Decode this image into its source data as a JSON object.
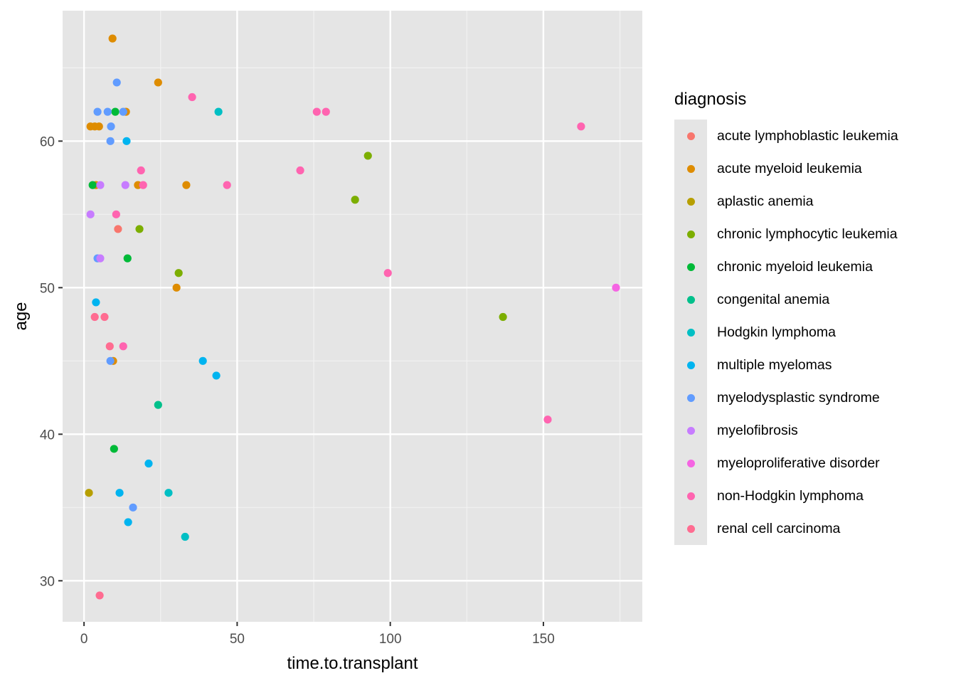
{
  "chart_data": {
    "type": "scatter",
    "title": "",
    "xlabel": "time.to.transplant",
    "ylabel": "age",
    "xlim": [
      -7,
      182.3
    ],
    "ylim": [
      27.2,
      68.9
    ],
    "x_ticks": [
      0,
      50,
      100,
      150
    ],
    "y_ticks": [
      30,
      40,
      50,
      60
    ],
    "x_minor": [
      25,
      75,
      125,
      175
    ],
    "y_minor": [
      35,
      45,
      55,
      65
    ],
    "grid": true,
    "legend": {
      "title": "diagnosis",
      "position": "right",
      "entries": [
        {
          "label": "acute lymphoblastic leukemia",
          "color": "#F8766D"
        },
        {
          "label": "acute myeloid leukemia",
          "color": "#DE8C00"
        },
        {
          "label": "aplastic anemia",
          "color": "#B79F00"
        },
        {
          "label": "chronic lymphocytic leukemia",
          "color": "#7CAE00"
        },
        {
          "label": "chronic myeloid leukemia",
          "color": "#00BA38"
        },
        {
          "label": "congenital anemia",
          "color": "#00C08B"
        },
        {
          "label": "Hodgkin lymphoma",
          "color": "#00BFC4"
        },
        {
          "label": "multiple myelomas",
          "color": "#00B4F0"
        },
        {
          "label": "myelodysplastic syndrome",
          "color": "#619CFF"
        },
        {
          "label": "myelofibrosis",
          "color": "#C77CFF"
        },
        {
          "label": "myeloproliferative disorder",
          "color": "#F564E3"
        },
        {
          "label": "non-Hodgkin lymphoma",
          "color": "#FF64B0"
        },
        {
          "label": "renal cell carcinoma",
          "color": "#FF6C91"
        }
      ]
    },
    "series": [
      {
        "name": "acute lymphoblastic leukemia",
        "points": [
          [
            11.1,
            54
          ]
        ]
      },
      {
        "name": "acute myeloid leukemia",
        "points": [
          [
            9.3,
            67
          ],
          [
            24.2,
            64
          ],
          [
            13.7,
            62
          ],
          [
            2.1,
            61
          ],
          [
            3.5,
            61
          ],
          [
            4.9,
            61
          ],
          [
            3.9,
            57
          ],
          [
            17.6,
            57
          ],
          [
            33.4,
            57
          ],
          [
            30.2,
            50
          ],
          [
            9.5,
            45
          ]
        ]
      },
      {
        "name": "aplastic anemia",
        "points": [
          [
            1.6,
            36
          ]
        ]
      },
      {
        "name": "chronic lymphocytic leukemia",
        "points": [
          [
            92.7,
            59
          ],
          [
            88.5,
            56
          ],
          [
            18.1,
            54
          ],
          [
            30.9,
            51
          ],
          [
            136.8,
            48
          ]
        ]
      },
      {
        "name": "chronic myeloid leukemia",
        "points": [
          [
            10.2,
            62
          ],
          [
            2.8,
            57
          ],
          [
            14.2,
            52
          ],
          [
            9.8,
            39
          ]
        ]
      },
      {
        "name": "congenital anemia",
        "points": [
          [
            24.2,
            42
          ]
        ]
      },
      {
        "name": "Hodgkin lymphoma",
        "points": [
          [
            43.9,
            62
          ],
          [
            27.6,
            36
          ],
          [
            33.0,
            33
          ]
        ]
      },
      {
        "name": "multiple myelomas",
        "points": [
          [
            13.9,
            60
          ],
          [
            3.9,
            49
          ],
          [
            38.8,
            45
          ],
          [
            43.2,
            44
          ],
          [
            21.1,
            38
          ],
          [
            11.6,
            36
          ],
          [
            14.4,
            34
          ]
        ]
      },
      {
        "name": "myelodysplastic syndrome",
        "points": [
          [
            10.7,
            64
          ],
          [
            4.4,
            62
          ],
          [
            7.7,
            62
          ],
          [
            12.8,
            62
          ],
          [
            8.8,
            61
          ],
          [
            8.6,
            60
          ],
          [
            4.4,
            52
          ],
          [
            8.6,
            45
          ],
          [
            16.0,
            35
          ]
        ]
      },
      {
        "name": "myelofibrosis",
        "points": [
          [
            5.3,
            57
          ],
          [
            13.5,
            57
          ],
          [
            2.1,
            55
          ],
          [
            5.3,
            52
          ]
        ]
      },
      {
        "name": "myeloproliferative disorder",
        "points": [
          [
            173.7,
            50
          ]
        ]
      },
      {
        "name": "non-Hodgkin lymphoma",
        "points": [
          [
            35.3,
            63
          ],
          [
            76.0,
            62
          ],
          [
            79.0,
            62
          ],
          [
            162.3,
            61
          ],
          [
            18.6,
            58
          ],
          [
            70.6,
            58
          ],
          [
            19.3,
            57
          ],
          [
            46.7,
            57
          ],
          [
            10.5,
            55
          ],
          [
            99.2,
            51
          ],
          [
            12.8,
            46
          ],
          [
            151.4,
            41
          ]
        ]
      },
      {
        "name": "renal cell carcinoma",
        "points": [
          [
            3.5,
            48
          ],
          [
            6.7,
            48
          ],
          [
            8.4,
            46
          ],
          [
            5.1,
            29
          ]
        ]
      }
    ]
  }
}
